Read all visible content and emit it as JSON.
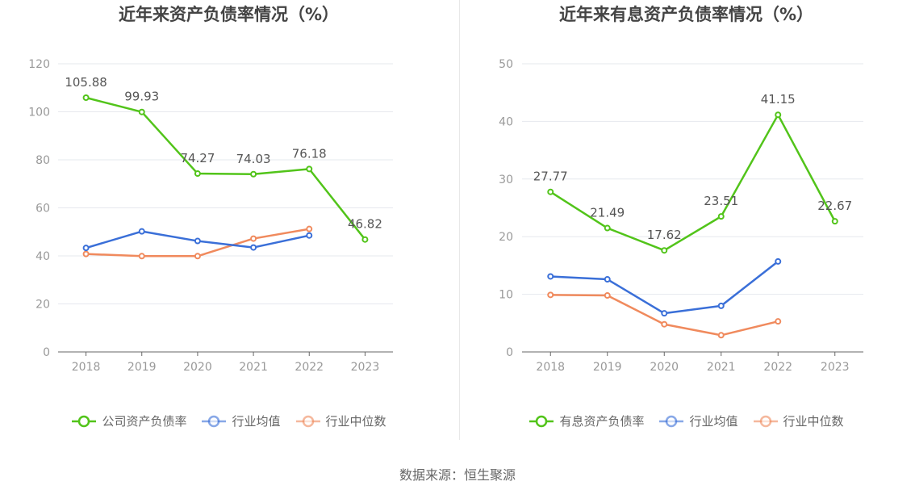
{
  "source_text": "数据来源：恒生聚源",
  "chart_data": [
    {
      "type": "line",
      "title": "近年来资产负债率情况（%）",
      "xlabel": "",
      "ylabel": "",
      "x": [
        "2018",
        "2019",
        "2020",
        "2021",
        "2022",
        "2023"
      ],
      "ylim": [
        0,
        120
      ],
      "yticks": [
        0,
        20,
        40,
        60,
        80,
        100,
        120
      ],
      "grid": true,
      "legend_position": "bottom",
      "series": [
        {
          "name": "公司资产负债率",
          "color": "#52c41a",
          "values": [
            105.88,
            99.93,
            74.27,
            74.03,
            76.18,
            46.82
          ],
          "labels": [
            "105.88",
            "99.93",
            "74.27",
            "74.03",
            "76.18",
            "46.82"
          ]
        },
        {
          "name": "行业均值",
          "color": "#3a6fd8",
          "values": [
            43.3,
            50.2,
            46.2,
            43.5,
            48.5,
            null
          ]
        },
        {
          "name": "行业中位数",
          "color": "#f08a5d",
          "values": [
            40.8,
            39.9,
            39.9,
            47.2,
            51.2,
            null
          ]
        }
      ]
    },
    {
      "type": "line",
      "title": "近年来有息资产负债率情况（%）",
      "xlabel": "",
      "ylabel": "",
      "x": [
        "2018",
        "2019",
        "2020",
        "2021",
        "2022",
        "2023"
      ],
      "ylim": [
        0,
        50
      ],
      "yticks": [
        0,
        10,
        20,
        30,
        40,
        50
      ],
      "grid": true,
      "legend_position": "bottom",
      "series": [
        {
          "name": "有息资产负债率",
          "color": "#52c41a",
          "values": [
            27.77,
            21.49,
            17.62,
            23.51,
            41.15,
            22.67
          ],
          "labels": [
            "27.77",
            "21.49",
            "17.62",
            "23.51",
            "41.15",
            "22.67"
          ]
        },
        {
          "name": "行业均值",
          "color": "#3a6fd8",
          "values": [
            13.1,
            12.6,
            6.7,
            8.0,
            15.7,
            null
          ]
        },
        {
          "name": "行业中位数",
          "color": "#f08a5d",
          "values": [
            9.9,
            9.8,
            4.8,
            2.9,
            5.3,
            null
          ]
        }
      ]
    }
  ]
}
